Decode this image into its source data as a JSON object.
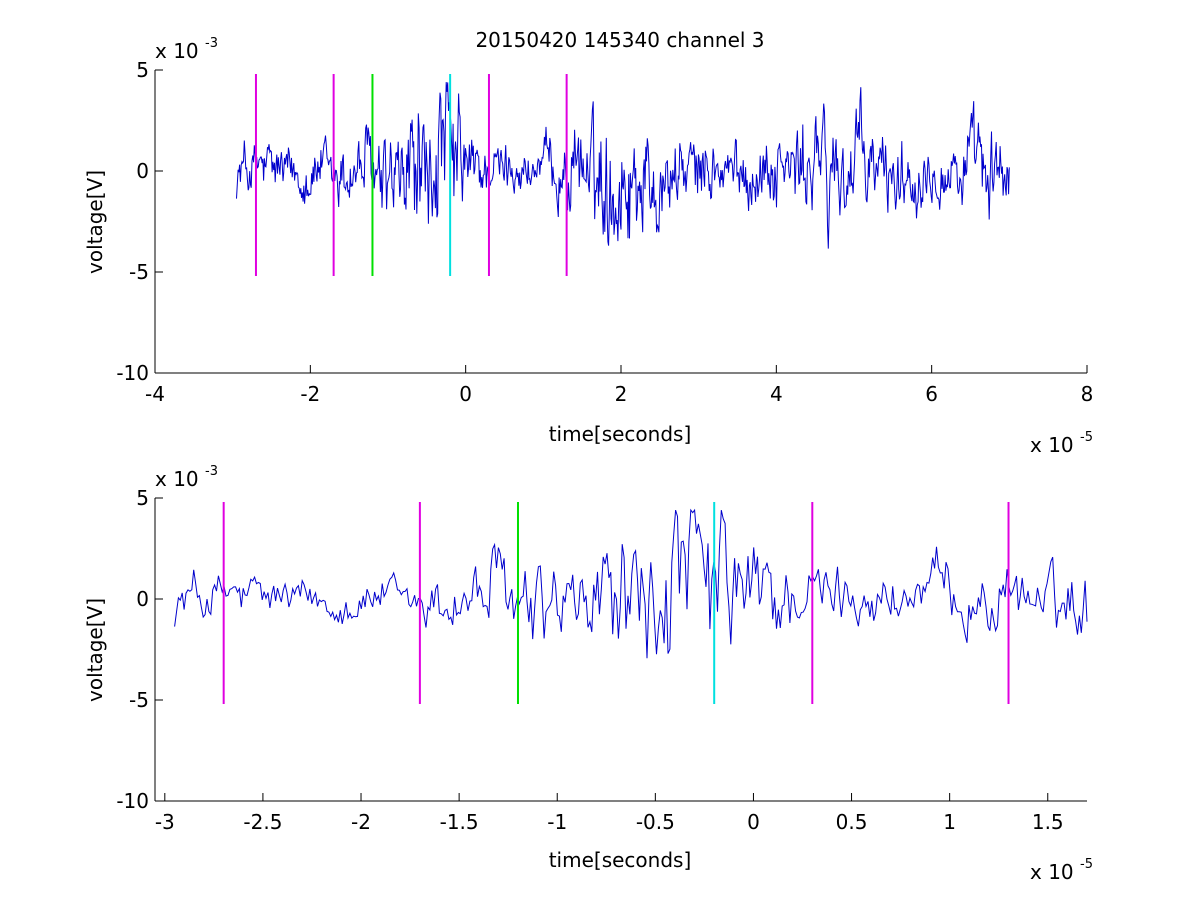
{
  "chart_data": [
    {
      "type": "line",
      "title": "20150420 145340 channel 3",
      "xlabel": "time[seconds]",
      "ylabel": "voltage[V]",
      "x_exponent_label": "x 10",
      "x_exponent": "-5",
      "y_exponent_label": "x 10",
      "y_exponent": "-3",
      "xlim": [
        -4,
        8
      ],
      "ylim": [
        -10,
        5
      ],
      "xticks": [
        -4,
        -2,
        0,
        2,
        4,
        6,
        8
      ],
      "xtick_labels": [
        "-4",
        "-2",
        "0",
        "2",
        "4",
        "6",
        "8"
      ],
      "yticks": [
        -10,
        -5,
        0,
        5
      ],
      "ytick_labels": [
        "-10",
        "-5",
        "0",
        "5"
      ],
      "grid": false,
      "signal": {
        "color": "#0000cc",
        "x_start": -2.95,
        "x_end": 7.0,
        "samples": 1000,
        "envelope": [
          [
            -2.95,
            1.3
          ],
          [
            -2.0,
            1.2
          ],
          [
            -1.6,
            1.4
          ],
          [
            -1.3,
            1.8
          ],
          [
            -1.0,
            2.2
          ],
          [
            -0.8,
            2.6
          ],
          [
            -0.5,
            3.5
          ],
          [
            -0.2,
            3.2
          ],
          [
            0.2,
            1.2
          ],
          [
            0.6,
            1.0
          ],
          [
            1.0,
            1.1
          ],
          [
            1.4,
            1.8
          ],
          [
            1.7,
            2.6
          ],
          [
            2.0,
            3.4
          ],
          [
            2.3,
            2.4
          ],
          [
            2.8,
            1.6
          ],
          [
            3.5,
            1.3
          ],
          [
            4.2,
            1.8
          ],
          [
            4.6,
            2.6
          ],
          [
            5.0,
            2.5
          ],
          [
            5.5,
            1.6
          ],
          [
            6.0,
            1.5
          ],
          [
            6.5,
            1.7
          ],
          [
            7.0,
            2.0
          ]
        ]
      },
      "markers": [
        {
          "x": -2.7,
          "color": "#e000e0"
        },
        {
          "x": -1.7,
          "color": "#e000e0"
        },
        {
          "x": -1.2,
          "color": "#00e000"
        },
        {
          "x": -0.2,
          "color": "#00e0e0"
        },
        {
          "x": 0.3,
          "color": "#e000e0"
        },
        {
          "x": 1.3,
          "color": "#e000e0"
        }
      ],
      "marker_yrange": [
        -5.2,
        4.8
      ]
    },
    {
      "type": "line",
      "title": "",
      "xlabel": "time[seconds]",
      "ylabel": "voltage[V]",
      "x_exponent_label": "x 10",
      "x_exponent": "-5",
      "y_exponent_label": "x 10",
      "y_exponent": "-3",
      "xlim": [
        -3.05,
        1.7
      ],
      "ylim": [
        -10,
        5
      ],
      "xticks": [
        -3,
        -2.5,
        -2,
        -1.5,
        -1,
        -0.5,
        0,
        0.5,
        1,
        1.5
      ],
      "xtick_labels": [
        "-3",
        "-2.5",
        "-2",
        "-1.5",
        "-1",
        "-0.5",
        "0",
        "0.5",
        "1",
        "1.5"
      ],
      "yticks": [
        -10,
        -5,
        0,
        5
      ],
      "ytick_labels": [
        "-10",
        "-5",
        "0",
        "5"
      ],
      "grid": false,
      "signal": {
        "color": "#0000cc",
        "x_start": -2.95,
        "x_end": 1.7,
        "samples": 480,
        "envelope": [
          [
            -2.95,
            1.3
          ],
          [
            -2.5,
            1.0
          ],
          [
            -2.0,
            0.9
          ],
          [
            -1.7,
            1.0
          ],
          [
            -1.5,
            1.6
          ],
          [
            -1.3,
            2.2
          ],
          [
            -1.1,
            2.3
          ],
          [
            -0.9,
            2.0
          ],
          [
            -0.7,
            2.8
          ],
          [
            -0.5,
            4.2
          ],
          [
            -0.3,
            3.5
          ],
          [
            -0.1,
            3.6
          ],
          [
            0.0,
            3.0
          ],
          [
            0.2,
            1.6
          ],
          [
            0.5,
            1.2
          ],
          [
            1.0,
            1.4
          ],
          [
            1.3,
            1.3
          ],
          [
            1.7,
            1.6
          ]
        ]
      },
      "markers": [
        {
          "x": -2.7,
          "color": "#e000e0"
        },
        {
          "x": -1.7,
          "color": "#e000e0"
        },
        {
          "x": -1.2,
          "color": "#00e000"
        },
        {
          "x": -0.2,
          "color": "#00e0e0"
        },
        {
          "x": 0.3,
          "color": "#e000e0"
        },
        {
          "x": 1.3,
          "color": "#e000e0"
        }
      ],
      "marker_yrange": [
        -5.2,
        4.8
      ]
    }
  ]
}
